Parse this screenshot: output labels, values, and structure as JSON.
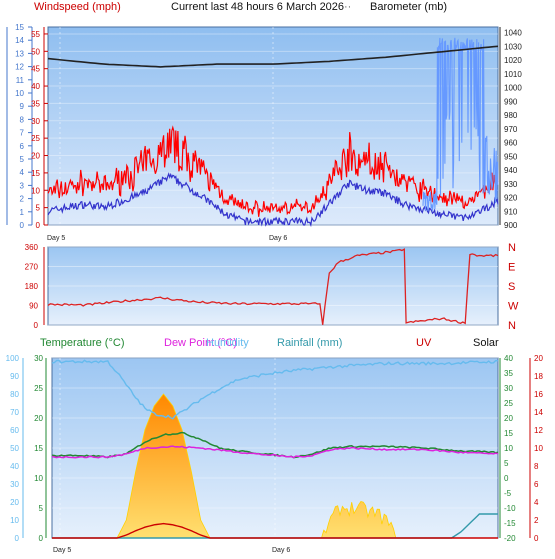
{
  "header": {
    "title": "Current last 48 hours 6 March 2026",
    "label_wind": "Windspeed (mph)",
    "label_baro": "Barometer (mb)",
    "sep": "··"
  },
  "colors": {
    "wind_max": "#ff0000",
    "wind_avg": "#3333cc",
    "baro": "#222222",
    "gust_spike": "#6699ff",
    "wind_dir": "#dd2222",
    "temp": "#228833",
    "dew": "#dd22dd",
    "humidity": "#66bbee",
    "rain": "#3399aa",
    "uv": "#cc0000",
    "solar": "#ffa010"
  },
  "chart_data": [
    {
      "type": "line",
      "title": "Current last 48 hours 6 March 2026",
      "x_tick_labels": [
        "Day 5",
        "Day 6"
      ],
      "left_axis": {
        "label": "Windspeed (mph)",
        "ylim": [
          0,
          57
        ],
        "ticks": [
          0,
          5,
          10,
          15,
          20,
          25,
          30,
          35,
          40,
          45,
          50,
          55
        ]
      },
      "left_axis_kts": {
        "ylim": [
          0,
          15
        ],
        "ticks": [
          0,
          1,
          2,
          3,
          4,
          5,
          6,
          7,
          8,
          9,
          10,
          11,
          12,
          13,
          14,
          15
        ]
      },
      "right_axis": {
        "label": "Barometer (mb)",
        "ylim": [
          900,
          1044
        ],
        "ticks": [
          900,
          910,
          920,
          930,
          940,
          950,
          960,
          970,
          980,
          990,
          1000,
          1010,
          1020,
          1030,
          1040
        ]
      },
      "series": [
        {
          "name": "Windspeed (mph)",
          "hours": [
            0,
            4,
            6,
            10,
            13,
            16,
            19,
            21,
            24,
            28,
            30,
            32,
            34,
            36,
            38,
            42,
            45,
            48
          ],
          "values": [
            4,
            6,
            5,
            9,
            14,
            9,
            3,
            1,
            1,
            1,
            6,
            12,
            10,
            9,
            6,
            3,
            2,
            7
          ]
        },
        {
          "name": "Barometer (mb)",
          "hours": [
            0,
            6,
            12,
            18,
            24,
            30,
            36,
            42,
            48
          ],
          "values": [
            1021,
            1017,
            1015,
            1017,
            1017,
            1019,
            1022,
            1026,
            1030
          ]
        }
      ]
    },
    {
      "type": "line",
      "left_axis": {
        "ylim": [
          0,
          360
        ],
        "ticks": [
          0,
          90,
          180,
          270,
          360
        ]
      },
      "right_axis": {
        "tick_labels": [
          "N",
          "W",
          "S",
          "E",
          "N"
        ]
      },
      "series": [
        {
          "name": "Wind direction",
          "hours": [
            0,
            4,
            8,
            12,
            16,
            20,
            25,
            29,
            29.3,
            30,
            31,
            33,
            37,
            38,
            38.2,
            42,
            44.5,
            45,
            46,
            48
          ],
          "values": [
            95,
            92,
            110,
            125,
            105,
            98,
            98,
            98,
            5,
            240,
            290,
            320,
            340,
            350,
            10,
            30,
            8,
            330,
            320,
            320
          ]
        }
      ]
    },
    {
      "type": "line",
      "legend": [
        "Temperature (°C)",
        "Dew Point (°C)",
        "Humidity",
        "Rainfall (mm)",
        "UV",
        "Solar"
      ],
      "axis_humidity": {
        "ylim": [
          0,
          100
        ],
        "ticks": [
          0,
          10,
          20,
          30,
          40,
          50,
          60,
          70,
          80,
          90,
          100
        ]
      },
      "axis_rain": {
        "ylim": [
          0,
          30
        ],
        "ticks": [
          0,
          5,
          10,
          15,
          20,
          25,
          30
        ]
      },
      "axis_temp": {
        "ylim": [
          -20,
          40
        ],
        "ticks": [
          -20,
          -15,
          -10,
          -5,
          0,
          5,
          10,
          15,
          20,
          25,
          30,
          35,
          40
        ]
      },
      "axis_uv": {
        "ylim": [
          0,
          20
        ],
        "ticks": [
          0,
          2,
          4,
          6,
          8,
          10,
          12,
          14,
          16,
          18,
          20
        ]
      },
      "x_tick_labels": [
        "Day 5",
        "Day 6"
      ],
      "series": [
        {
          "name": "Temperature (°C)",
          "hours": [
            0,
            3,
            6,
            8,
            10,
            12,
            14,
            16,
            18,
            20,
            23,
            26,
            28,
            30,
            32,
            36,
            40,
            44,
            48
          ],
          "values": [
            7.5,
            7.5,
            7,
            8,
            12,
            14.5,
            15,
            13,
            10,
            9,
            8,
            7,
            8,
            10,
            10.5,
            10.5,
            10,
            9,
            8.5
          ]
        },
        {
          "name": "Dew Point (°C)",
          "hours": [
            0,
            3,
            6,
            8,
            10,
            13,
            16,
            19,
            22,
            26,
            28,
            30,
            32,
            36,
            40,
            44,
            48
          ],
          "values": [
            7,
            7,
            7,
            8,
            10,
            10.5,
            10,
            9,
            8,
            7,
            7.5,
            9.5,
            10,
            9.5,
            9.5,
            8.5,
            8
          ]
        },
        {
          "name": "Humidity",
          "hours": [
            0,
            3,
            6,
            7,
            8,
            9,
            10,
            11,
            12,
            13,
            14,
            16,
            18,
            20,
            23,
            26,
            30,
            36,
            42,
            48
          ],
          "values": [
            98,
            98,
            98,
            92,
            85,
            78,
            72,
            69,
            68,
            67,
            70,
            77,
            83,
            88,
            91,
            93,
            95,
            97,
            97,
            98
          ]
        },
        {
          "name": "Rainfall (mm)",
          "hours": [
            0,
            43,
            44,
            45,
            46,
            48
          ],
          "values": [
            0,
            0,
            1,
            2.5,
            4,
            4
          ]
        },
        {
          "name": "UV",
          "hours": [
            0,
            7,
            8,
            9,
            10,
            11,
            12,
            13,
            14,
            15,
            16,
            17,
            48
          ],
          "values": [
            0,
            0,
            0.5,
            1.2,
            1.8,
            2.2,
            2.4,
            2.2,
            1.8,
            1.2,
            0.5,
            0,
            0
          ]
        },
        {
          "name": "Solar",
          "hours": [
            0,
            7,
            8,
            9,
            10,
            11,
            12,
            13,
            14,
            15,
            16,
            17,
            29,
            30,
            31,
            33,
            35,
            36,
            37,
            48
          ],
          "values": [
            0,
            0,
            3,
            11,
            18,
            22,
            24,
            22,
            18,
            11,
            3,
            0,
            0,
            3,
            5,
            5,
            4,
            3,
            0,
            0
          ]
        }
      ]
    }
  ]
}
